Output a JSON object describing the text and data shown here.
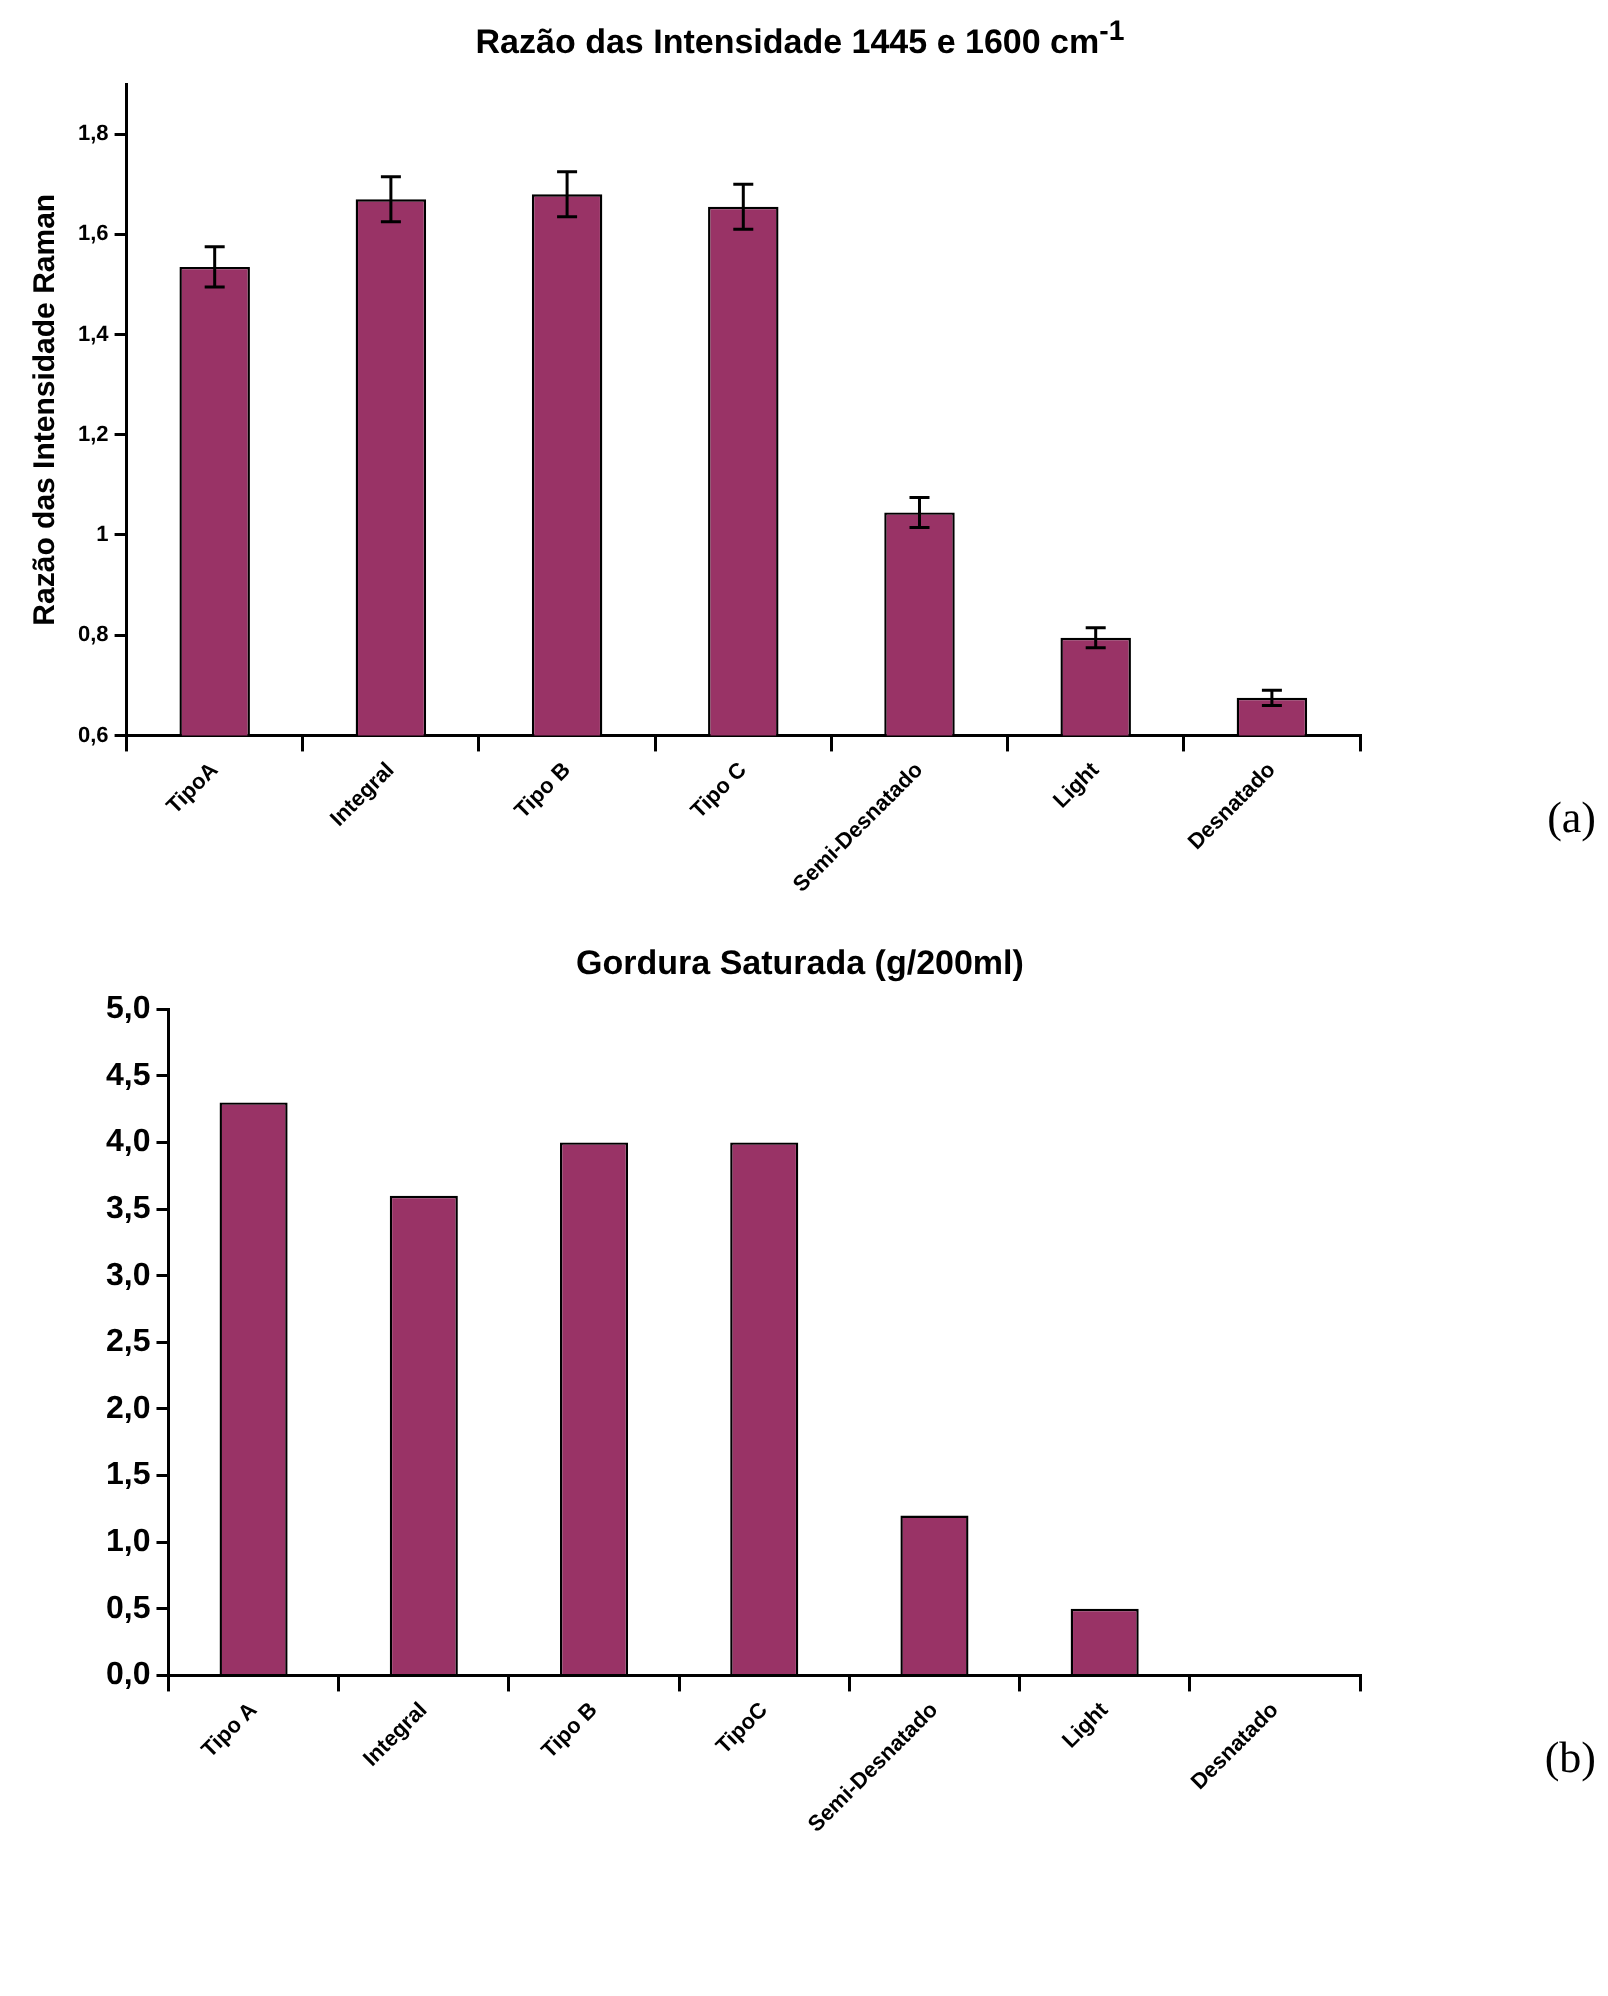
{
  "chart_data": [
    {
      "type": "bar",
      "title": "Razão das Intensidade 1445 e 1600 cm$^{-1}$",
      "ylabel": "Razão das Intensidade Raman",
      "categories": [
        "TipoA",
        "Integral",
        "Tipo B",
        "Tipo C",
        "Semi-Desnatado",
        "Light",
        "Desnatado"
      ],
      "values": [
        1.535,
        1.67,
        1.68,
        1.655,
        1.045,
        0.795,
        0.675
      ],
      "errors": [
        0.04,
        0.045,
        0.045,
        0.045,
        0.03,
        0.02,
        0.015
      ],
      "color": "#993366",
      "ylim": [
        0.6,
        1.9
      ],
      "yticks": [
        {
          "value": 0.6,
          "label": "0,6"
        },
        {
          "value": 0.8,
          "label": "0,8"
        },
        {
          "value": 1,
          "label": "1"
        },
        {
          "value": 1.2,
          "label": "1,2"
        },
        {
          "value": 1.4,
          "label": "1,4"
        },
        {
          "value": 1.6,
          "label": "1,6"
        },
        {
          "value": 1.8,
          "label": "1,8"
        }
      ],
      "grid": false,
      "legend": false,
      "annotations": [
        "(a)"
      ]
    },
    {
      "type": "bar",
      "title": "Gordura Saturada (g/200ml)",
      "categories": [
        "Tipo A",
        "Integral",
        "Tipo B",
        "TipoC",
        "Semi-Desnatado",
        "Light",
        "Desnatado"
      ],
      "values": [
        4.3,
        3.6,
        4.0,
        4.0,
        1.2,
        0.5,
        0
      ],
      "color": "#993366",
      "ylim": [
        0,
        5
      ],
      "yticks": [
        {
          "value": 0,
          "label": "0,0"
        },
        {
          "value": 0.5,
          "label": "0,5"
        },
        {
          "value": 1,
          "label": "1,0"
        },
        {
          "value": 1.5,
          "label": "1,5"
        },
        {
          "value": 2,
          "label": "2,0"
        },
        {
          "value": 2.5,
          "label": "2,5"
        },
        {
          "value": 3,
          "label": "3,0"
        },
        {
          "value": 3.5,
          "label": "3,5"
        },
        {
          "value": 4,
          "label": "4,0"
        },
        {
          "value": 4.5,
          "label": "4,5"
        },
        {
          "value": 5,
          "label": "5,0"
        }
      ],
      "grid": false,
      "legend": false,
      "annotations": [
        "(b)"
      ]
    }
  ]
}
